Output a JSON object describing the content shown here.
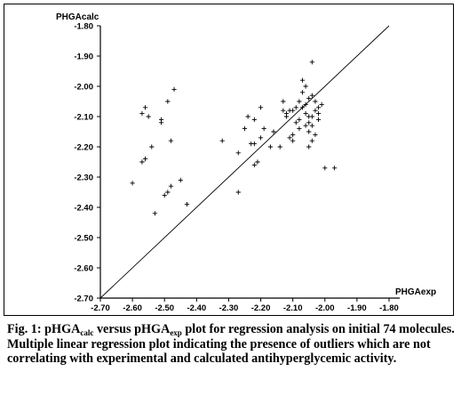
{
  "chart_data": {
    "type": "scatter",
    "xlabel": "PHGAexp",
    "ylabel": "PHGAcalc",
    "xlim": [
      -2.7,
      -1.8
    ],
    "ylim": [
      -2.7,
      -1.8
    ],
    "x_ticks": [
      "-2.70",
      "-2.60",
      "-2.50",
      "-2.40",
      "-2.30",
      "-2.20",
      "-2.10",
      "-2.00",
      "-1.90",
      "-1.80"
    ],
    "y_ticks": [
      "-1.80",
      "-1.90",
      "-2.00",
      "-2.10",
      "-2.20",
      "-2.30",
      "-2.40",
      "-2.50",
      "-2.60",
      "-2.70"
    ],
    "reference_line": {
      "from": [
        -2.7,
        -2.7
      ],
      "to": [
        -1.8,
        -1.8
      ]
    },
    "points": [
      [
        -2.57,
        -2.09
      ],
      [
        -2.56,
        -2.07
      ],
      [
        -2.55,
        -2.1
      ],
      [
        -2.57,
        -2.25
      ],
      [
        -2.56,
        -2.24
      ],
      [
        -2.54,
        -2.2
      ],
      [
        -2.51,
        -2.11
      ],
      [
        -2.51,
        -2.12
      ],
      [
        -2.49,
        -2.05
      ],
      [
        -2.47,
        -2.01
      ],
      [
        -2.48,
        -2.18
      ],
      [
        -2.6,
        -2.32
      ],
      [
        -2.53,
        -2.42
      ],
      [
        -2.5,
        -2.36
      ],
      [
        -2.49,
        -2.35
      ],
      [
        -2.48,
        -2.33
      ],
      [
        -2.45,
        -2.31
      ],
      [
        -2.43,
        -2.39
      ],
      [
        -2.32,
        -2.18
      ],
      [
        -2.27,
        -2.22
      ],
      [
        -2.27,
        -2.35
      ],
      [
        -2.25,
        -2.14
      ],
      [
        -2.24,
        -2.1
      ],
      [
        -2.22,
        -2.11
      ],
      [
        -2.2,
        -2.07
      ],
      [
        -2.23,
        -2.19
      ],
      [
        -2.22,
        -2.19
      ],
      [
        -2.2,
        -2.17
      ],
      [
        -2.21,
        -2.25
      ],
      [
        -2.22,
        -2.26
      ],
      [
        -2.17,
        -2.2
      ],
      [
        -2.14,
        -2.2
      ],
      [
        -2.13,
        -2.05
      ],
      [
        -2.12,
        -2.1
      ],
      [
        -2.11,
        -2.08
      ],
      [
        -2.11,
        -2.17
      ],
      [
        -2.1,
        -2.16
      ],
      [
        -2.09,
        -2.12
      ],
      [
        -2.08,
        -2.14
      ],
      [
        -2.07,
        -2.07
      ],
      [
        -2.07,
        -1.98
      ],
      [
        -2.06,
        -2.0
      ],
      [
        -2.07,
        -2.02
      ],
      [
        -2.06,
        -2.06
      ],
      [
        -2.06,
        -2.09
      ],
      [
        -2.05,
        -2.1
      ],
      [
        -2.05,
        -2.15
      ],
      [
        -2.04,
        -2.13
      ],
      [
        -2.04,
        -2.18
      ],
      [
        -2.04,
        -1.92
      ],
      [
        -2.04,
        -2.03
      ],
      [
        -2.03,
        -2.08
      ],
      [
        -2.03,
        -2.05
      ],
      [
        -2.02,
        -2.07
      ],
      [
        -2.02,
        -2.09
      ],
      [
        -2.02,
        -2.11
      ],
      [
        -2.01,
        -2.06
      ],
      [
        -2.05,
        -2.04
      ],
      [
        -2.08,
        -2.11
      ],
      [
        -2.09,
        -2.07
      ],
      [
        -2.1,
        -2.08
      ],
      [
        -2.12,
        -2.09
      ],
      [
        -2.16,
        -2.15
      ],
      [
        -2.19,
        -2.14
      ],
      [
        -2.0,
        -2.27
      ],
      [
        -1.97,
        -2.27
      ],
      [
        -2.06,
        -2.13
      ],
      [
        -2.05,
        -2.12
      ],
      [
        -2.04,
        -2.1
      ],
      [
        -2.03,
        -2.16
      ],
      [
        -2.08,
        -2.05
      ],
      [
        -2.1,
        -2.18
      ],
      [
        -2.13,
        -2.08
      ],
      [
        -2.05,
        -2.2
      ]
    ]
  },
  "caption": {
    "fig_label": "Fig. 1:",
    "line1_a": " pHGA",
    "sub1": "calc",
    "line1_b": " versus pHGA",
    "sub2": "exp",
    "line1_c": " plot for regression analysis on initial 74 molecules.",
    "line2": "Multiple linear regression plot indicating the presence of outliers which are not correlating with experimental and calculated antihyperglycemic activity."
  }
}
